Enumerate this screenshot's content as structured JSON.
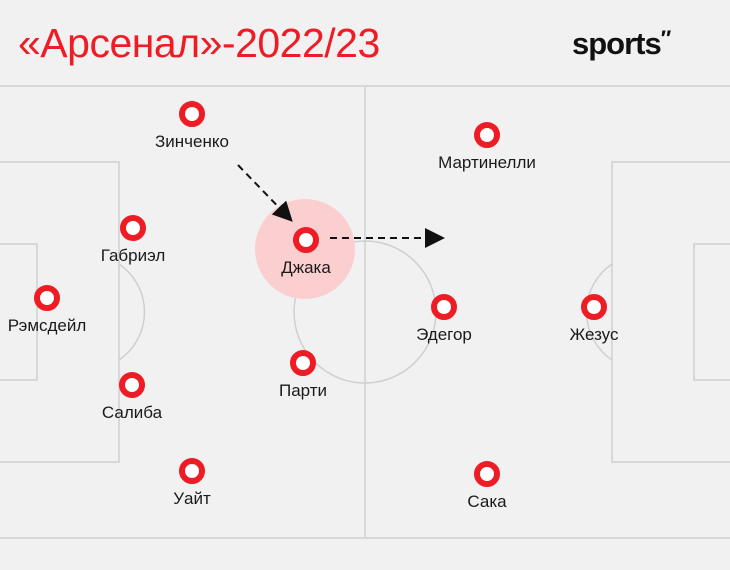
{
  "title": "«Арсенал»-2022/23",
  "logo": "sports",
  "colors": {
    "accent": "#ee1c25",
    "highlight": "#fbcfd0",
    "lines": "#cfcfcf",
    "background": "#f1f1f1"
  },
  "players": [
    {
      "name": "Зинченко",
      "highlighted": false
    },
    {
      "name": "Мартинелли",
      "highlighted": false
    },
    {
      "name": "Габриэл",
      "highlighted": false
    },
    {
      "name": "Джака",
      "highlighted": true
    },
    {
      "name": "Рэмсдейл",
      "highlighted": false
    },
    {
      "name": "Эдегор",
      "highlighted": false
    },
    {
      "name": "Жезус",
      "highlighted": false
    },
    {
      "name": "Парти",
      "highlighted": false
    },
    {
      "name": "Салиба",
      "highlighted": false
    },
    {
      "name": "Уайт",
      "highlighted": false
    },
    {
      "name": "Сака",
      "highlighted": false
    }
  ],
  "arrows": [
    {
      "from": "Зинченко",
      "to": "Джака"
    },
    {
      "from": "Джака",
      "direction": "forward"
    }
  ]
}
